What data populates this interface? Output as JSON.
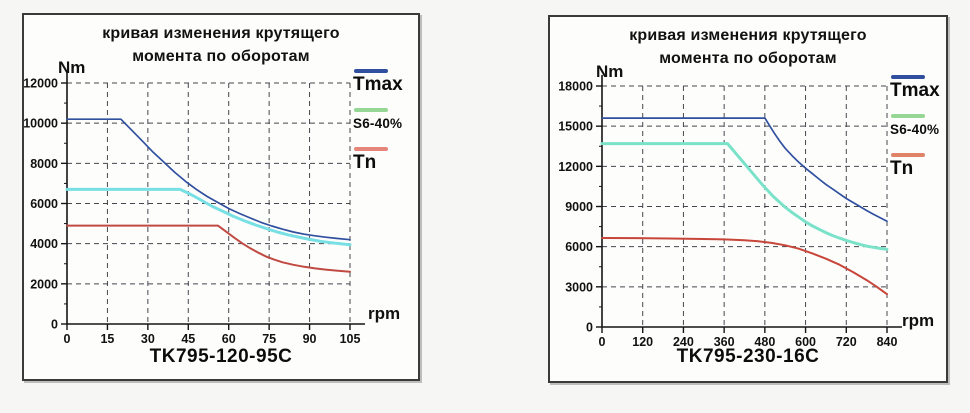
{
  "charts": [
    {
      "title_line1": "кривая изменения крутящего",
      "title_line2": "момента по оборотам",
      "y_unit": "Nm",
      "x_unit": "rpm",
      "model": "TK795-120-95C",
      "legend": [
        {
          "label": "Tmax",
          "color": "#30509f"
        },
        {
          "label": "S6-40%",
          "color": "#97d795"
        },
        {
          "label": "Tn",
          "color": "#e6857c"
        }
      ]
    },
    {
      "title_line1": "кривая изменения крутящего",
      "title_line2": "момента по оборотам",
      "y_unit": "Nm",
      "x_unit": "rpm",
      "model": "TK795-230-16C",
      "legend": [
        {
          "label": "Tmax",
          "color": "#30509f"
        },
        {
          "label": "S6-40%",
          "color": "#97d795"
        },
        {
          "label": "Tn",
          "color": "#e08468"
        }
      ]
    }
  ],
  "chart_data": [
    {
      "type": "line",
      "title": "кривая изменения крутящего момента по оборотам",
      "xlabel": "rpm",
      "ylabel": "Nm",
      "xlim": [
        0,
        105
      ],
      "ylim": [
        0,
        12000
      ],
      "x_ticks": [
        0,
        15,
        30,
        45,
        60,
        75,
        90,
        105
      ],
      "y_ticks": [
        0,
        2000,
        4000,
        6000,
        8000,
        10000,
        12000
      ],
      "grid": true,
      "legend_position": "right",
      "series": [
        {
          "name": "Tmax",
          "color": "#30509f",
          "width": 1.7,
          "points": [
            [
              0,
              10200
            ],
            [
              20,
              10200
            ],
            [
              24,
              9650
            ],
            [
              28,
              9100
            ],
            [
              32,
              8550
            ],
            [
              36,
              8050
            ],
            [
              40,
              7550
            ],
            [
              44,
              7100
            ],
            [
              48,
              6700
            ],
            [
              52,
              6350
            ],
            [
              56,
              6050
            ],
            [
              60,
              5750
            ],
            [
              64,
              5500
            ],
            [
              68,
              5280
            ],
            [
              72,
              5060
            ],
            [
              76,
              4880
            ],
            [
              80,
              4720
            ],
            [
              84,
              4580
            ],
            [
              88,
              4470
            ],
            [
              92,
              4390
            ],
            [
              96,
              4320
            ],
            [
              100,
              4260
            ],
            [
              105,
              4200
            ]
          ]
        },
        {
          "name": "S6-40%",
          "color": "#78e0e4",
          "width": 3,
          "points": [
            [
              0,
              6700
            ],
            [
              42,
              6700
            ],
            [
              46,
              6450
            ],
            [
              50,
              6150
            ],
            [
              54,
              5850
            ],
            [
              58,
              5600
            ],
            [
              62,
              5350
            ],
            [
              66,
              5130
            ],
            [
              70,
              4930
            ],
            [
              74,
              4750
            ],
            [
              78,
              4580
            ],
            [
              82,
              4440
            ],
            [
              86,
              4320
            ],
            [
              90,
              4210
            ],
            [
              94,
              4120
            ],
            [
              98,
              4050
            ],
            [
              102,
              3990
            ],
            [
              105,
              3950
            ]
          ]
        },
        {
          "name": "Tn",
          "color": "#c14a42",
          "width": 2,
          "points": [
            [
              0,
              4900
            ],
            [
              56,
              4900
            ],
            [
              59,
              4600
            ],
            [
              62,
              4300
            ],
            [
              65,
              4020
            ],
            [
              68,
              3770
            ],
            [
              71,
              3550
            ],
            [
              74,
              3350
            ],
            [
              77,
              3200
            ],
            [
              80,
              3070
            ],
            [
              84,
              2950
            ],
            [
              88,
              2850
            ],
            [
              92,
              2770
            ],
            [
              96,
              2710
            ],
            [
              100,
              2660
            ],
            [
              105,
              2600
            ]
          ]
        }
      ]
    },
    {
      "type": "line",
      "title": "кривая изменения крутящего момента по оборотам",
      "xlabel": "rpm",
      "ylabel": "Nm",
      "xlim": [
        0,
        840
      ],
      "ylim": [
        0,
        18000
      ],
      "x_ticks": [
        0,
        120,
        240,
        360,
        480,
        600,
        720,
        840
      ],
      "y_ticks": [
        0,
        3000,
        6000,
        9000,
        12000,
        15000,
        18000
      ],
      "grid": true,
      "legend_position": "right",
      "series": [
        {
          "name": "Tmax",
          "color": "#30509f",
          "width": 1.7,
          "points": [
            [
              0,
              15600
            ],
            [
              480,
              15600
            ],
            [
              495,
              15000
            ],
            [
              510,
              14400
            ],
            [
              525,
              13850
            ],
            [
              540,
              13350
            ],
            [
              560,
              12800
            ],
            [
              580,
              12300
            ],
            [
              600,
              11850
            ],
            [
              620,
              11450
            ],
            [
              640,
              11050
            ],
            [
              660,
              10650
            ],
            [
              680,
              10300
            ],
            [
              700,
              9950
            ],
            [
              720,
              9600
            ],
            [
              740,
              9300
            ],
            [
              760,
              9000
            ],
            [
              780,
              8700
            ],
            [
              800,
              8420
            ],
            [
              820,
              8160
            ],
            [
              840,
              7900
            ]
          ]
        },
        {
          "name": "S6-40%",
          "color": "#7be2ca",
          "width": 3,
          "points": [
            [
              0,
              13700
            ],
            [
              370,
              13700
            ],
            [
              385,
              13250
            ],
            [
              400,
              12800
            ],
            [
              415,
              12350
            ],
            [
              430,
              11900
            ],
            [
              445,
              11450
            ],
            [
              460,
              11000
            ],
            [
              475,
              10550
            ],
            [
              490,
              10150
            ],
            [
              505,
              9750
            ],
            [
              520,
              9400
            ],
            [
              540,
              8950
            ],
            [
              560,
              8550
            ],
            [
              580,
              8200
            ],
            [
              600,
              7850
            ],
            [
              620,
              7550
            ],
            [
              640,
              7300
            ],
            [
              660,
              7050
            ],
            [
              680,
              6830
            ],
            [
              700,
              6640
            ],
            [
              720,
              6470
            ],
            [
              740,
              6310
            ],
            [
              760,
              6170
            ],
            [
              780,
              6040
            ],
            [
              800,
              5950
            ],
            [
              820,
              5870
            ],
            [
              840,
              5800
            ]
          ]
        },
        {
          "name": "Tn",
          "color": "#c8453a",
          "width": 2,
          "points": [
            [
              0,
              6650
            ],
            [
              100,
              6640
            ],
            [
              200,
              6610
            ],
            [
              300,
              6570
            ],
            [
              360,
              6540
            ],
            [
              420,
              6480
            ],
            [
              460,
              6400
            ],
            [
              500,
              6280
            ],
            [
              540,
              6100
            ],
            [
              580,
              5850
            ],
            [
              620,
              5500
            ],
            [
              660,
              5100
            ],
            [
              700,
              4650
            ],
            [
              740,
              4100
            ],
            [
              780,
              3500
            ],
            [
              810,
              3000
            ],
            [
              840,
              2450
            ]
          ]
        }
      ]
    }
  ]
}
